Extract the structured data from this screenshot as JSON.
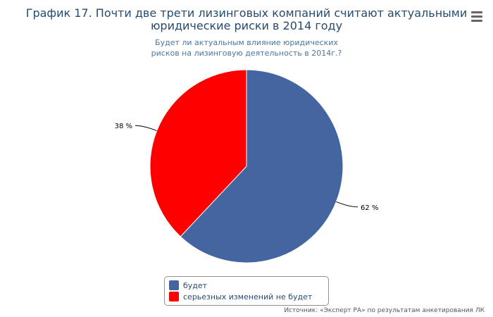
{
  "header": {
    "title_line1": "График 17. Почти две трети лизинговых компаний считают актуальными",
    "title_line2": "юридические риски в 2014 году",
    "subtitle_line1": "Будет ли актуальным влияние юридических",
    "subtitle_line2": "рисков на лизинговую деятельность в 2014г.?"
  },
  "chart_data": {
    "type": "pie",
    "title": "График 17. Почти две трети лизинговых компаний считают актуальными юридические риски в 2014 году",
    "subtitle": "Будет ли актуальным влияние юридических рисков на лизинговую деятельность в 2014г.?",
    "slices": [
      {
        "name": "будет",
        "value": 62,
        "label": "62 %",
        "color": "#4465a0"
      },
      {
        "name": "серьезных изменений не будет",
        "value": 38,
        "label": "38 %",
        "color": "#ff0000"
      }
    ],
    "legend_placement": "bottom-center"
  },
  "legend": {
    "items": [
      {
        "label": "будет",
        "color": "#4465a0"
      },
      {
        "label": "серьезных изменений не будет",
        "color": "#ff0000"
      }
    ]
  },
  "footer": {
    "source": "Источник: «Эксперт РА» по результатам анкетирования ЛК"
  },
  "icons": {
    "menu": "hamburger-menu-icon"
  }
}
